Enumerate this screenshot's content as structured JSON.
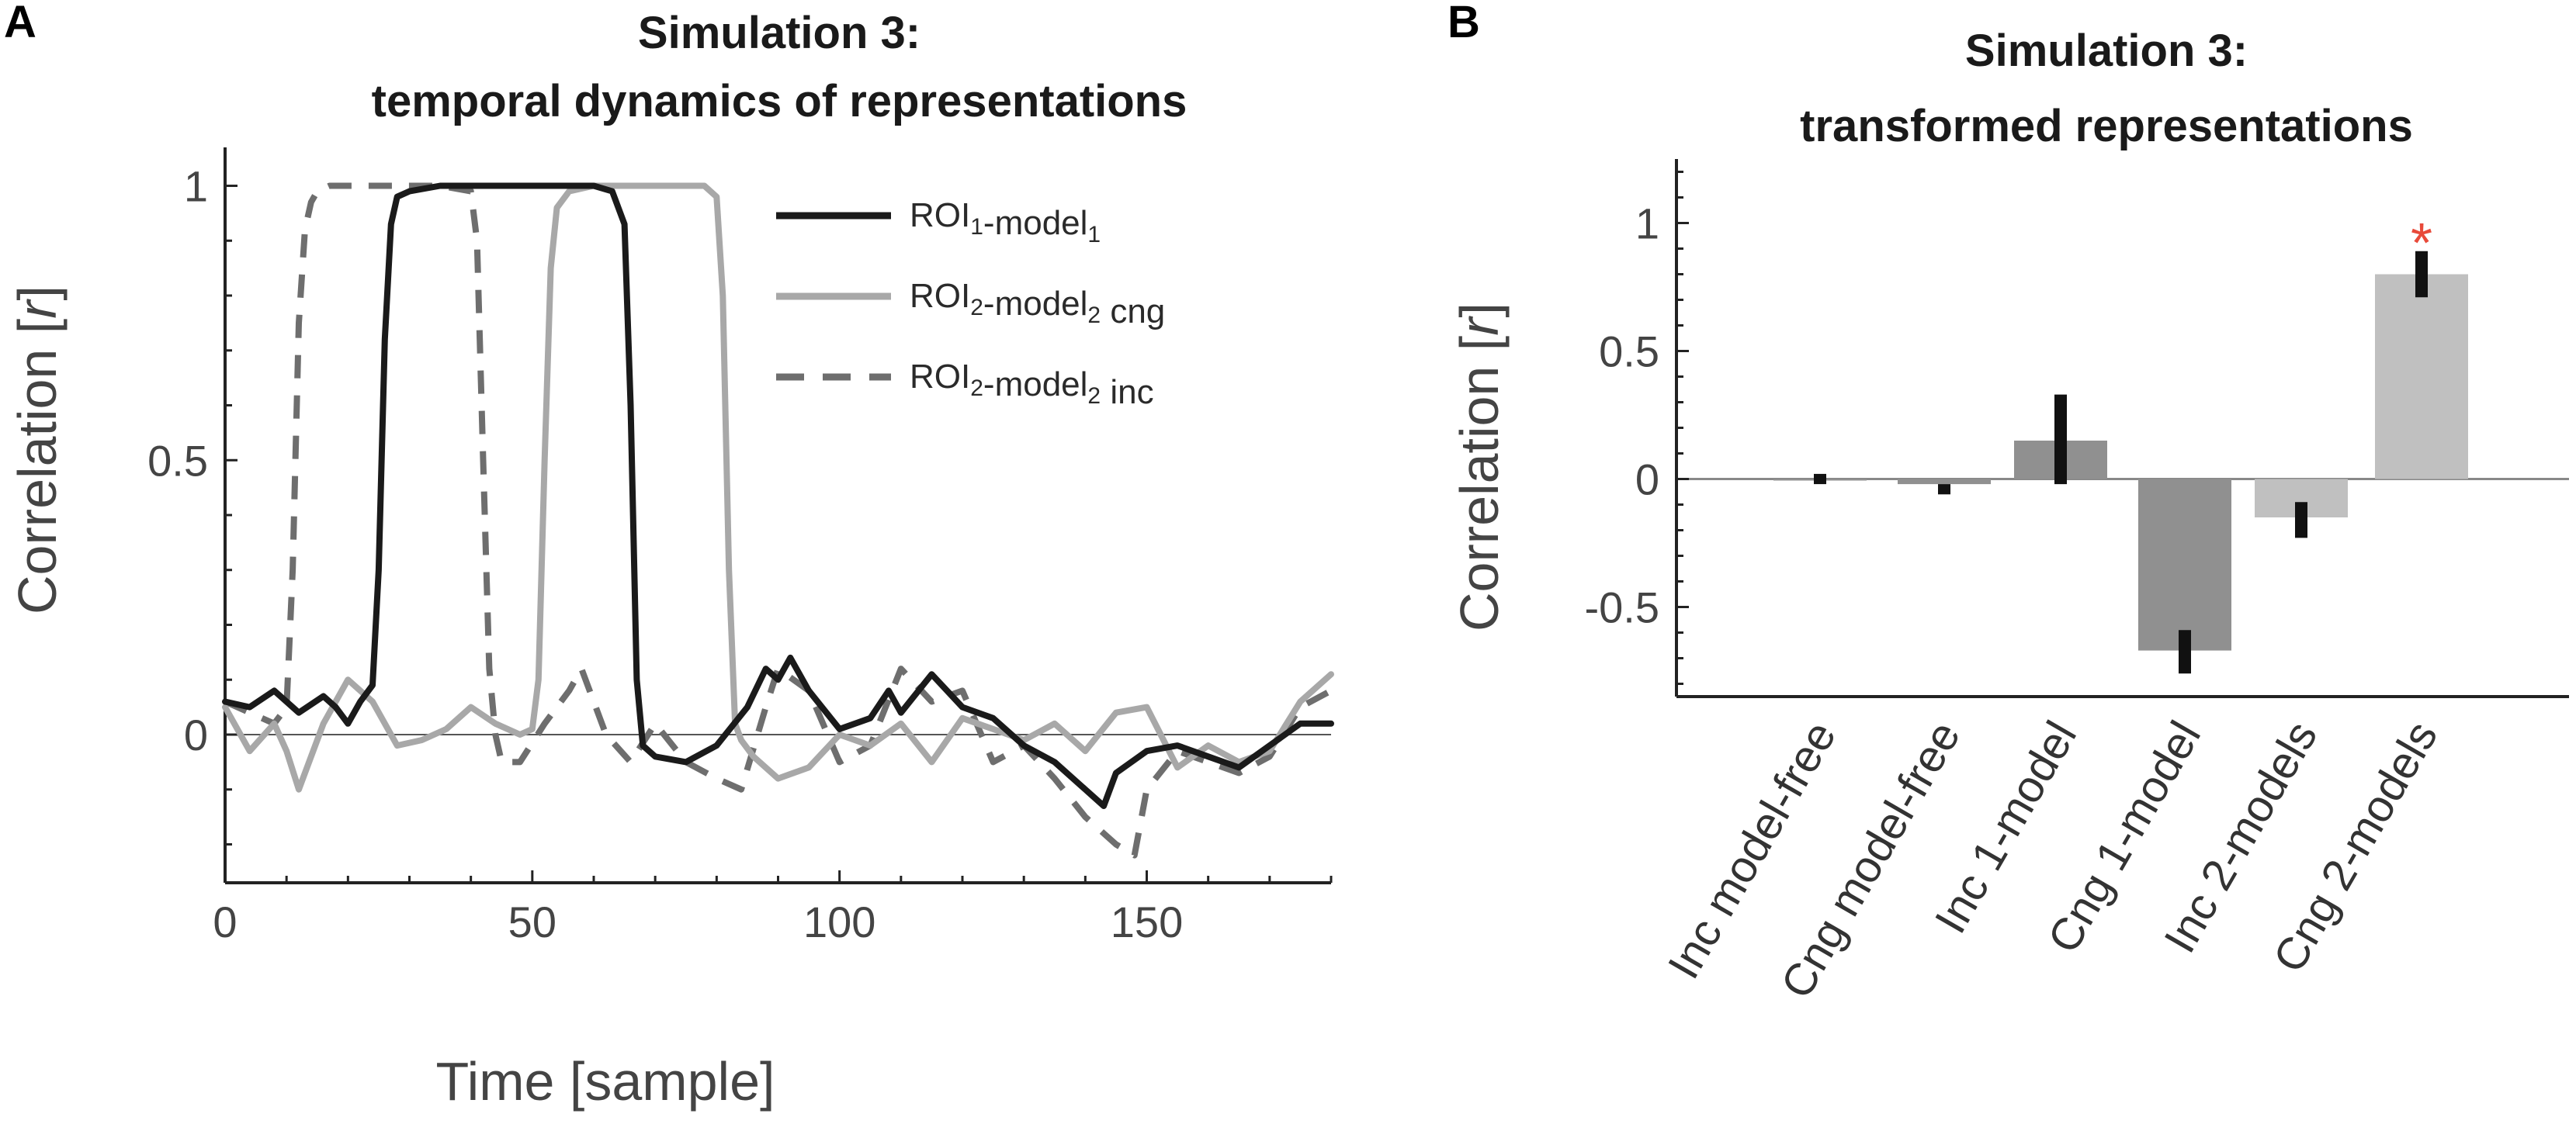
{
  "chart_data": [
    {
      "panel": "A",
      "type": "line",
      "title": [
        "Simulation 3:",
        "temporal dynamics of representations"
      ],
      "xlabel": "Time [sample]",
      "ylabel_prefix": "Correlation [",
      "ylabel_var": "r",
      "ylabel_suffix": "]",
      "xlim": [
        0,
        180
      ],
      "ylim": [
        -0.27,
        1.07
      ],
      "xticks": [
        0,
        50,
        100,
        150
      ],
      "yticks": [
        0,
        0.5,
        1
      ],
      "ytick_labels": [
        "0",
        "0.5",
        "1"
      ],
      "series": [
        {
          "name": "ROI1-model1",
          "legend_parts": [
            [
              "ROI",
              ""
            ],
            [
              "1",
              "sub"
            ],
            [
              "-model",
              ""
            ],
            [
              "1",
              "sub"
            ]
          ],
          "color": "#1a1a1a",
          "dash": "solid",
          "x": [
            0,
            4,
            8,
            12,
            16,
            18,
            20,
            22,
            24,
            25,
            26,
            27,
            28,
            30,
            35,
            40,
            45,
            50,
            55,
            60,
            63,
            65,
            66,
            67,
            68,
            70,
            75,
            80,
            85,
            88,
            90,
            92,
            95,
            100,
            105,
            108,
            110,
            115,
            120,
            125,
            130,
            135,
            140,
            143,
            145,
            150,
            155,
            160,
            165,
            170,
            175,
            180
          ],
          "y": [
            0.06,
            0.05,
            0.08,
            0.04,
            0.07,
            0.05,
            0.02,
            0.06,
            0.09,
            0.3,
            0.72,
            0.93,
            0.98,
            0.99,
            1.0,
            1.0,
            1.0,
            1.0,
            1.0,
            1.0,
            0.99,
            0.93,
            0.6,
            0.1,
            -0.02,
            -0.04,
            -0.05,
            -0.02,
            0.05,
            0.12,
            0.1,
            0.14,
            0.08,
            0.01,
            0.03,
            0.08,
            0.04,
            0.11,
            0.05,
            0.03,
            -0.02,
            -0.05,
            -0.1,
            -0.13,
            -0.07,
            -0.03,
            -0.02,
            -0.04,
            -0.06,
            -0.02,
            0.02,
            0.02
          ]
        },
        {
          "name": "ROI2-model2 cng",
          "legend_parts": [
            [
              "ROI",
              ""
            ],
            [
              "2",
              "sub"
            ],
            [
              "-model",
              ""
            ],
            [
              "2",
              "sub"
            ],
            [
              " cng",
              ""
            ]
          ],
          "color": "#a8a8a8",
          "dash": "solid",
          "x": [
            0,
            4,
            8,
            10,
            12,
            16,
            20,
            24,
            28,
            32,
            36,
            40,
            44,
            48,
            50,
            51,
            52,
            53,
            54,
            56,
            60,
            65,
            70,
            75,
            78,
            80,
            81,
            82,
            83,
            84,
            86,
            90,
            95,
            100,
            105,
            110,
            115,
            120,
            125,
            130,
            135,
            140,
            145,
            150,
            155,
            160,
            165,
            170,
            175,
            180
          ],
          "y": [
            0.05,
            -0.03,
            0.02,
            -0.03,
            -0.1,
            0.02,
            0.1,
            0.06,
            -0.02,
            -0.01,
            0.01,
            0.05,
            0.02,
            0.0,
            0.01,
            0.1,
            0.5,
            0.85,
            0.96,
            0.99,
            1.0,
            1.0,
            1.0,
            1.0,
            1.0,
            0.98,
            0.8,
            0.3,
            0.02,
            -0.01,
            -0.04,
            -0.08,
            -0.06,
            0.0,
            -0.02,
            0.02,
            -0.05,
            0.03,
            0.01,
            -0.01,
            0.02,
            -0.03,
            0.04,
            0.05,
            -0.06,
            -0.02,
            -0.05,
            -0.03,
            0.06,
            0.11
          ]
        },
        {
          "name": "ROI2-model2 inc",
          "legend_parts": [
            [
              "ROI",
              ""
            ],
            [
              "2",
              "sub"
            ],
            [
              "-model",
              ""
            ],
            [
              "2",
              "sub"
            ],
            [
              " inc",
              ""
            ]
          ],
          "color": "#6e6e6e",
          "dash": "dashed",
          "x": [
            0,
            4,
            8,
            10,
            11,
            12,
            13,
            14,
            15,
            17,
            20,
            25,
            30,
            35,
            40,
            41,
            42,
            43,
            44,
            45,
            48,
            52,
            56,
            58,
            62,
            66,
            70,
            75,
            80,
            84,
            88,
            90,
            95,
            100,
            105,
            110,
            115,
            120,
            125,
            130,
            135,
            140,
            145,
            148,
            150,
            155,
            160,
            165,
            170,
            175,
            180
          ],
          "y": [
            0.06,
            0.04,
            0.02,
            0.05,
            0.3,
            0.75,
            0.92,
            0.97,
            0.99,
            1.0,
            1.0,
            1.0,
            1.0,
            1.0,
            0.99,
            0.9,
            0.5,
            0.12,
            0.0,
            -0.05,
            -0.05,
            0.02,
            0.08,
            0.12,
            0.0,
            -0.05,
            0.02,
            -0.05,
            -0.08,
            -0.1,
            0.05,
            0.12,
            0.08,
            -0.05,
            -0.02,
            0.12,
            0.06,
            0.08,
            -0.05,
            -0.02,
            -0.08,
            -0.15,
            -0.2,
            -0.22,
            -0.1,
            -0.03,
            -0.05,
            -0.07,
            -0.04,
            0.05,
            0.08
          ]
        }
      ]
    },
    {
      "panel": "B",
      "type": "bar",
      "title": [
        "Simulation 3:",
        "transformed representations"
      ],
      "ylabel_prefix": "Correlation [",
      "ylabel_var": "r",
      "ylabel_suffix": "]",
      "ylim": [
        -0.85,
        1.25
      ],
      "yticks": [
        -0.5,
        0,
        0.5,
        1
      ],
      "ytick_labels": [
        "-0.5",
        "0",
        "0.5",
        "1"
      ],
      "categories": [
        "Inc model-free",
        "Cng model-free",
        "Inc 1-model",
        "Cng 1-model",
        "Inc 2-models",
        "Cng 2-models"
      ],
      "values": [
        0.0,
        -0.02,
        0.15,
        -0.67,
        -0.15,
        0.8
      ],
      "error_low": [
        -0.02,
        -0.06,
        -0.02,
        -0.76,
        -0.23,
        0.71
      ],
      "error_high": [
        0.02,
        -0.02,
        0.33,
        -0.59,
        -0.09,
        0.89
      ],
      "bar_colors": [
        "#909090",
        "#909090",
        "#909090",
        "#909090",
        "#c0c0c0",
        "#c0c0c0"
      ],
      "significance_marker": "*",
      "significance_index": 5,
      "marker_color": "#e84a3a"
    }
  ]
}
